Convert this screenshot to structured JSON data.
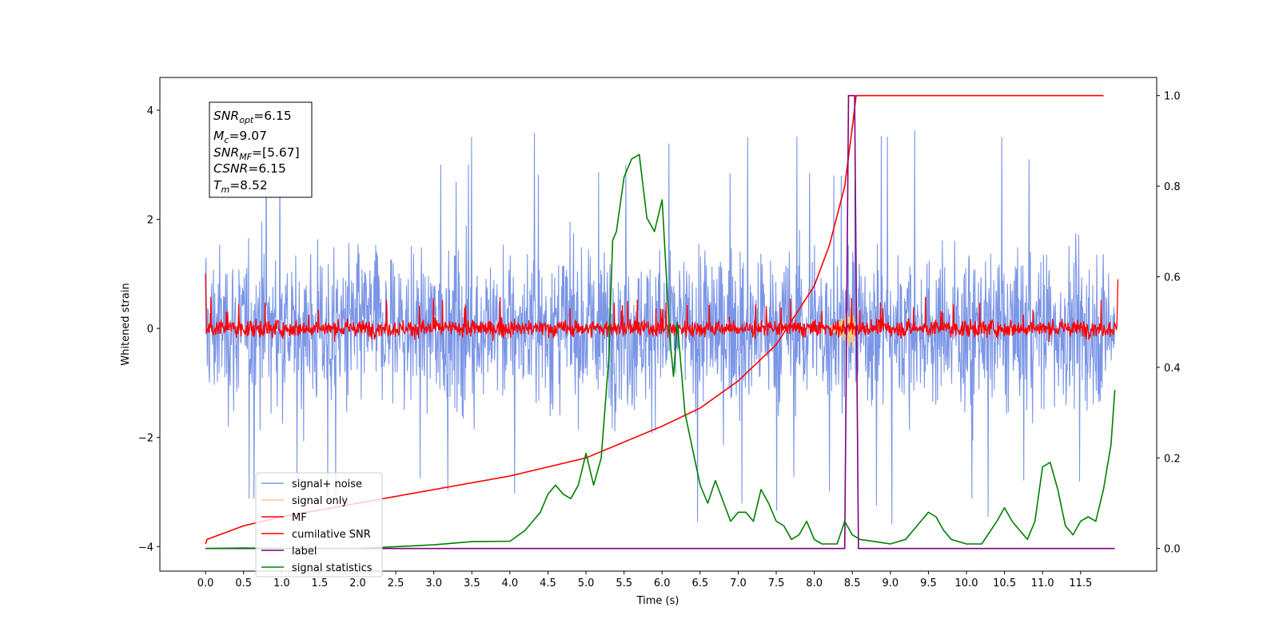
{
  "chart_data": {
    "type": "line",
    "xlabel": "Time (s)",
    "ylabel": "Whitened strain",
    "xlim": [
      -0.6,
      12.5
    ],
    "ylim": [
      -4.45,
      4.6
    ],
    "ylim_right": [
      -0.05,
      1.04
    ],
    "xticks": [
      "0.0",
      "0.5",
      "1.0",
      "1.5",
      "2.0",
      "2.5",
      "3.0",
      "3.5",
      "4.0",
      "4.5",
      "5.0",
      "5.5",
      "6.0",
      "6.5",
      "7.0",
      "7.5",
      "8.0",
      "8.5",
      "9.0",
      "9.5",
      "10.0",
      "10.5",
      "11.0",
      "11.5"
    ],
    "yticks_left": [
      "4",
      "2",
      "0",
      "−2",
      "−4"
    ],
    "yticks_right": [
      "1.0",
      "0.8",
      "0.6",
      "0.4",
      "0.2",
      "0.0"
    ],
    "info_box": {
      "snr_opt": "=6.15",
      "mc": "=9.07",
      "snr_mf": "=[5.67]",
      "csnr": "=6.15",
      "tm": "=8.52"
    },
    "legend": {
      "position": "lower-left",
      "entries": [
        {
          "label": "signal+ noise",
          "color": "#7b96e6"
        },
        {
          "label": "signal only",
          "color": "#f7c97e"
        },
        {
          "label": "MF",
          "color": "#ff0000"
        },
        {
          "label": "cumilative SNR",
          "color": "#ff0000"
        },
        {
          "label": "label",
          "color": "#800080"
        },
        {
          "label": "signal statistics",
          "color": "#008000"
        }
      ]
    },
    "series": [
      {
        "name": "signal+ noise",
        "axis": "left",
        "style": "noise",
        "color": "#7b96e6",
        "duration_s": 12,
        "typical_range": [
          -2.4,
          2.4
        ],
        "peak_range": [
          -3.8,
          4.1
        ]
      },
      {
        "name": "signal only",
        "axis": "left",
        "color": "#f7c97e",
        "x": [
          8.2,
          8.3,
          8.4,
          8.45,
          8.5,
          8.52,
          8.55
        ],
        "envelope": [
          0.05,
          0.12,
          0.25,
          0.35,
          0.45,
          0.3,
          0.05
        ]
      },
      {
        "name": "MF",
        "axis": "left",
        "style": "noise",
        "color": "#ff0000",
        "duration_s": 12,
        "typical_range": [
          -0.3,
          0.3
        ],
        "peak_range": [
          -0.3,
          0.6
        ],
        "start_value": 1.0,
        "end_value": 0.9
      },
      {
        "name": "cumilative SNR",
        "axis": "right",
        "color": "#ff0000",
        "x": [
          0.0,
          0.02,
          0.5,
          1.0,
          2.0,
          3.0,
          4.0,
          5.0,
          6.0,
          6.5,
          7.0,
          7.5,
          8.0,
          8.2,
          8.4,
          8.5,
          8.55,
          11.8
        ],
        "y": [
          0.01,
          0.02,
          0.05,
          0.07,
          0.1,
          0.13,
          0.16,
          0.2,
          0.27,
          0.31,
          0.37,
          0.45,
          0.58,
          0.67,
          0.8,
          0.93,
          1.0,
          1.0
        ]
      },
      {
        "name": "label",
        "axis": "right",
        "color": "#800080",
        "x": [
          0.0,
          8.4,
          8.45,
          8.53,
          8.58,
          11.95
        ],
        "y": [
          0.0,
          0.0,
          1.0,
          1.0,
          0.0,
          0.0
        ]
      },
      {
        "name": "signal statistics",
        "axis": "right",
        "color": "#008000",
        "x": [
          0.0,
          0.5,
          1.0,
          2.0,
          2.5,
          3.0,
          3.5,
          4.0,
          4.2,
          4.4,
          4.5,
          4.6,
          4.7,
          4.8,
          4.9,
          5.0,
          5.1,
          5.2,
          5.3,
          5.35,
          5.4,
          5.5,
          5.6,
          5.7,
          5.8,
          5.9,
          6.0,
          6.1,
          6.15,
          6.2,
          6.3,
          6.4,
          6.5,
          6.6,
          6.7,
          6.9,
          7.0,
          7.1,
          7.2,
          7.3,
          7.4,
          7.5,
          7.6,
          7.7,
          7.8,
          7.9,
          8.0,
          8.1,
          8.2,
          8.3,
          8.4,
          8.5,
          8.6,
          8.8,
          9.0,
          9.2,
          9.4,
          9.5,
          9.6,
          9.7,
          9.8,
          10.0,
          10.2,
          10.4,
          10.5,
          10.6,
          10.8,
          10.9,
          11.0,
          11.1,
          11.2,
          11.3,
          11.4,
          11.5,
          11.6,
          11.7,
          11.8,
          11.9,
          11.95
        ],
        "y": [
          0.0,
          0.001,
          0.0,
          0.0,
          0.004,
          0.008,
          0.015,
          0.016,
          0.04,
          0.08,
          0.12,
          0.14,
          0.12,
          0.11,
          0.14,
          0.21,
          0.14,
          0.2,
          0.42,
          0.68,
          0.7,
          0.82,
          0.86,
          0.87,
          0.73,
          0.7,
          0.77,
          0.47,
          0.38,
          0.5,
          0.3,
          0.22,
          0.14,
          0.1,
          0.15,
          0.06,
          0.08,
          0.08,
          0.06,
          0.13,
          0.1,
          0.06,
          0.05,
          0.02,
          0.03,
          0.06,
          0.02,
          0.01,
          0.01,
          0.01,
          0.06,
          0.03,
          0.02,
          0.015,
          0.01,
          0.02,
          0.06,
          0.08,
          0.07,
          0.04,
          0.02,
          0.01,
          0.01,
          0.06,
          0.09,
          0.06,
          0.02,
          0.06,
          0.18,
          0.19,
          0.13,
          0.05,
          0.03,
          0.06,
          0.07,
          0.06,
          0.13,
          0.23,
          0.35
        ]
      }
    ]
  }
}
